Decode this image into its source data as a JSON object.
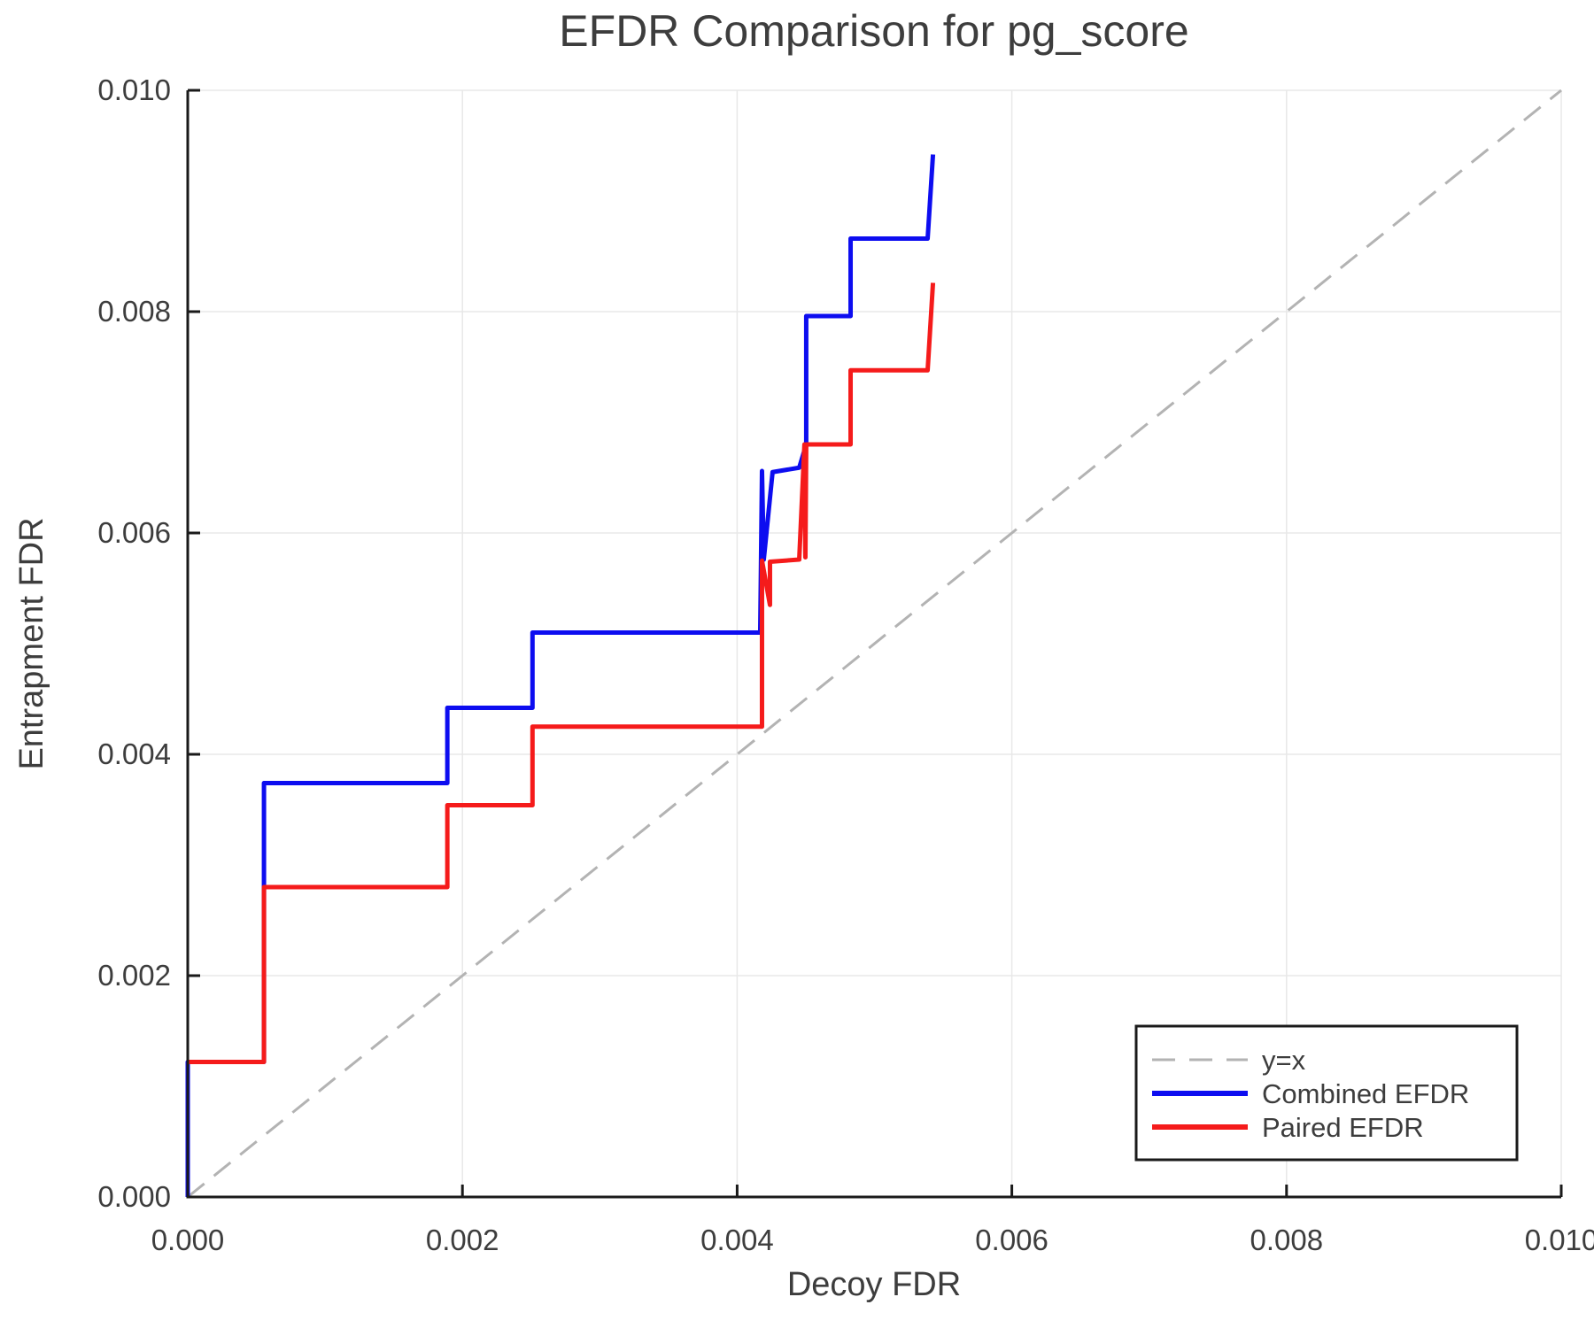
{
  "title": "EFDR Comparison for pg_score",
  "chart_data": {
    "type": "line",
    "title": "EFDR Comparison for pg_score",
    "xlabel": "Decoy FDR",
    "ylabel": "Entrapment FDR",
    "xlim": [
      0.0,
      0.01
    ],
    "ylim": [
      0.0,
      0.01
    ],
    "x_ticks": [
      0.0,
      0.002,
      0.004,
      0.006,
      0.008,
      0.01
    ],
    "y_ticks": [
      0.0,
      0.002,
      0.004,
      0.006,
      0.008,
      0.01
    ],
    "tick_decimals": 3,
    "grid": true,
    "grid_color": "#e8e8e8",
    "axis_color": "#1a1a1a",
    "text_color": "#3d3d3d",
    "legend_position": "lower right",
    "series": [
      {
        "name": "y=x",
        "style": "dashed",
        "color": "#b3b3b3",
        "linewidth": 3,
        "points": [
          [
            0.0,
            0.0
          ],
          [
            0.01,
            0.01
          ]
        ]
      },
      {
        "name": "Combined EFDR",
        "style": "solid",
        "color": "#0d0df0",
        "linewidth": 5,
        "points": [
          [
            0.0,
            0.0
          ],
          [
            0.0,
            0.00122
          ],
          [
            0.000555,
            0.00122
          ],
          [
            0.000555,
            0.00374
          ],
          [
            0.00189,
            0.00374
          ],
          [
            0.00189,
            0.00442
          ],
          [
            0.00251,
            0.00442
          ],
          [
            0.00251,
            0.0051
          ],
          [
            0.004168,
            0.0051
          ],
          [
            0.004181,
            0.00656
          ],
          [
            0.004194,
            0.00576
          ],
          [
            0.004258,
            0.00655
          ],
          [
            0.004452,
            0.00659
          ],
          [
            0.004503,
            0.0068
          ],
          [
            0.004503,
            0.00796
          ],
          [
            0.004826,
            0.00796
          ],
          [
            0.004826,
            0.00866
          ],
          [
            0.005387,
            0.00866
          ],
          [
            0.005426,
            0.00942
          ]
        ]
      },
      {
        "name": "Paired EFDR",
        "style": "solid",
        "color": "#f51b1b",
        "linewidth": 5,
        "points": [
          [
            0.0,
            0.00122
          ],
          [
            0.000555,
            0.00122
          ],
          [
            0.000555,
            0.0028
          ],
          [
            0.00189,
            0.0028
          ],
          [
            0.00189,
            0.00354
          ],
          [
            0.00251,
            0.00354
          ],
          [
            0.00251,
            0.00425
          ],
          [
            0.004181,
            0.00425
          ],
          [
            0.004181,
            0.00575
          ],
          [
            0.004239,
            0.00535
          ],
          [
            0.004239,
            0.00574
          ],
          [
            0.004452,
            0.00576
          ],
          [
            0.00449,
            0.0068
          ],
          [
            0.004497,
            0.00578
          ],
          [
            0.004503,
            0.0068
          ],
          [
            0.004826,
            0.0068
          ],
          [
            0.004826,
            0.00747
          ],
          [
            0.005387,
            0.00747
          ],
          [
            0.005426,
            0.00826
          ]
        ]
      }
    ],
    "legend_items": [
      {
        "label": "y=x"
      },
      {
        "label": "Combined EFDR"
      },
      {
        "label": "Paired EFDR"
      }
    ]
  }
}
